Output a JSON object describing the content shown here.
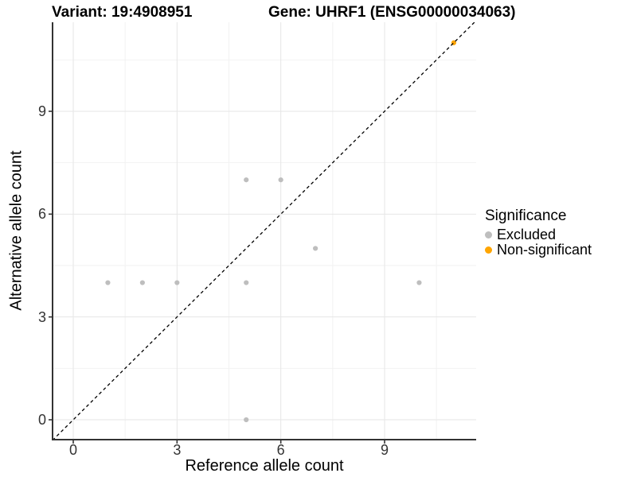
{
  "chart_data": {
    "type": "scatter",
    "titles": {
      "left": "Variant: 19:4908951",
      "right": "Gene: UHRF1 (ENSG00000034063)"
    },
    "xlabel": "Reference allele count",
    "ylabel": "Alternative allele count",
    "x_ticks": [
      0,
      3,
      6,
      9
    ],
    "y_ticks": [
      0,
      3,
      6,
      9
    ],
    "xlim": [
      -0.6,
      11.65
    ],
    "ylim": [
      -0.58,
      11.6
    ],
    "grid": {
      "major": [
        0,
        3,
        6,
        9
      ],
      "minor": [
        1.5,
        4.5,
        7.5,
        10.5
      ],
      "major_color": "#e6e6e6",
      "minor_color": "#f2f2f2"
    },
    "axis_color": "#333333",
    "identity_line": {
      "type": "y=x",
      "style": "dashed",
      "color": "#000000"
    },
    "legend": {
      "title": "Significance",
      "position": "right"
    },
    "series": [
      {
        "name": "Excluded",
        "color": "#BEBEBE",
        "points": [
          [
            1,
            4
          ],
          [
            2,
            4
          ],
          [
            3,
            4
          ],
          [
            5,
            4
          ],
          [
            10,
            4
          ],
          [
            5,
            0
          ],
          [
            5,
            7
          ],
          [
            6,
            7
          ],
          [
            7,
            5
          ]
        ]
      },
      {
        "name": "Non-significant",
        "color": "#FFA500",
        "points": [
          [
            11,
            11
          ]
        ]
      }
    ]
  }
}
